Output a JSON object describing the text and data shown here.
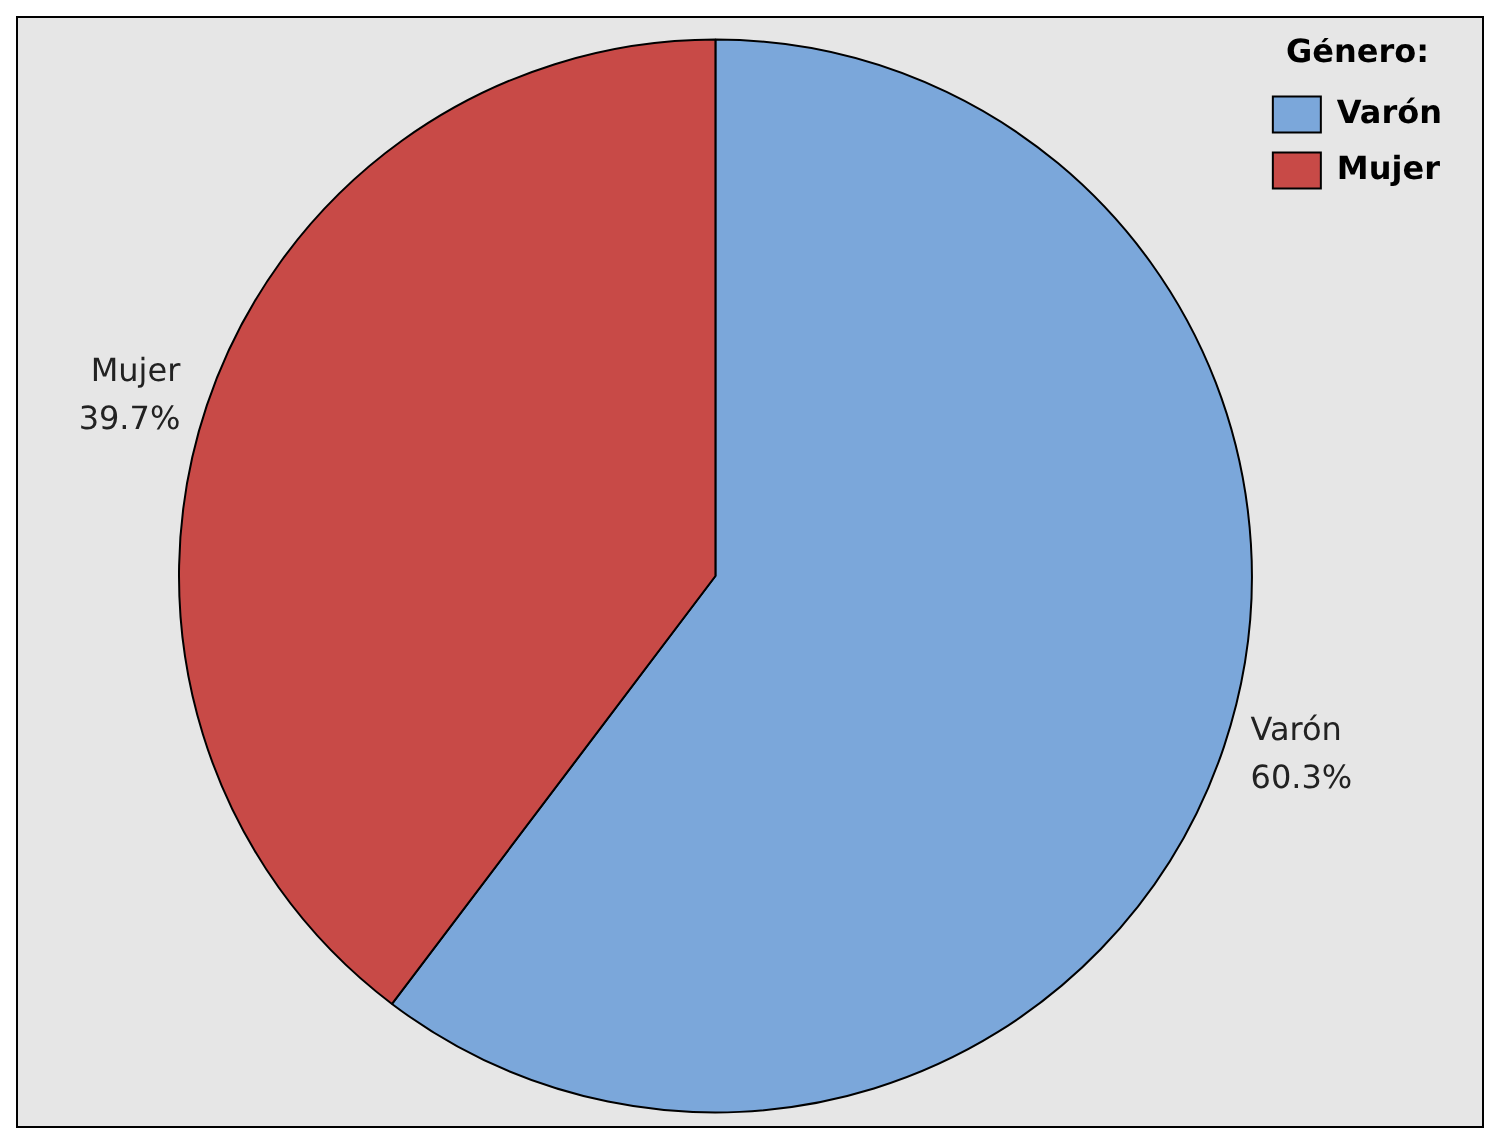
{
  "chart_data": {
    "type": "pie",
    "legend_title": "Género:",
    "categories": [
      "Varón",
      "Mujer"
    ],
    "values": [
      60.3,
      39.7
    ],
    "value_labels": [
      "60.3%",
      "39.7%"
    ],
    "colors": [
      "#7ba7da",
      "#c84a47"
    ],
    "legend": "top right"
  }
}
